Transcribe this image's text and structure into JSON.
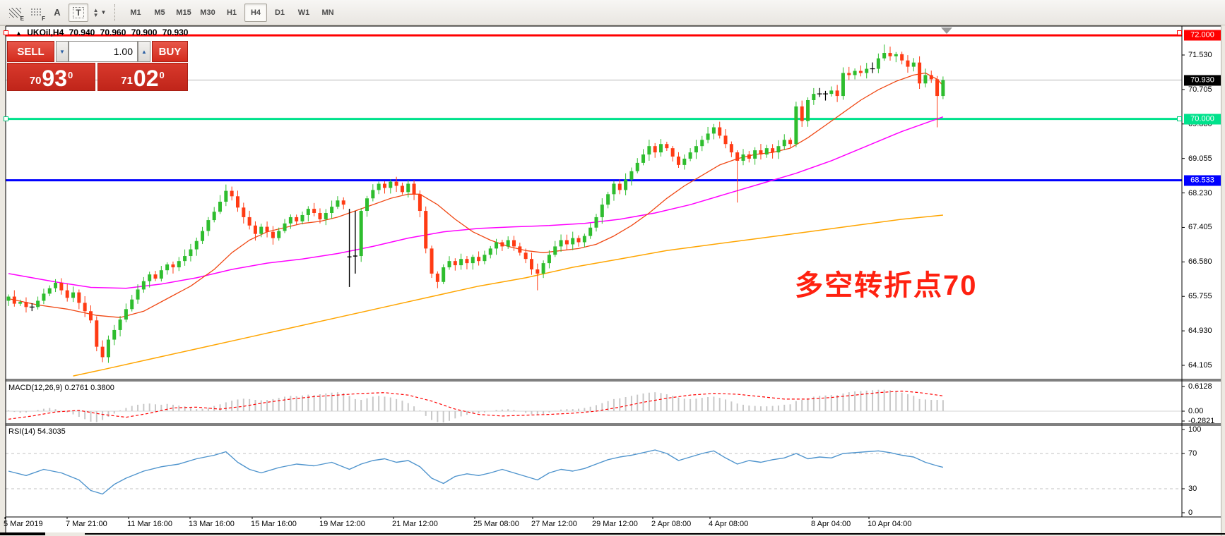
{
  "toolbar": {
    "icon_buttons": [
      {
        "name": "hatch-pattern-button",
        "sub": "E"
      },
      {
        "name": "grid-pattern-button",
        "sub": "F"
      },
      {
        "name": "font-button",
        "label": "A"
      },
      {
        "name": "text-box-button",
        "label": "T"
      },
      {
        "name": "arrange-symbols-button"
      }
    ],
    "timeframes": [
      {
        "label": "M1"
      },
      {
        "label": "M5"
      },
      {
        "label": "M15"
      },
      {
        "label": "M30"
      },
      {
        "label": "H1"
      },
      {
        "label": "H4"
      },
      {
        "label": "D1"
      },
      {
        "label": "W1"
      },
      {
        "label": "MN"
      }
    ],
    "active_timeframe": "H4"
  },
  "symbol_header": {
    "symbol": "UKOil,H4",
    "open": "70.940",
    "high": "70.960",
    "low": "70.900",
    "close": "70.930"
  },
  "trade_panel": {
    "sell_label": "SELL",
    "buy_label": "BUY",
    "volume": "1.00",
    "sell_price": {
      "prefix": "70",
      "big": "93",
      "sup": "0"
    },
    "buy_price": {
      "prefix": "71",
      "big": "02",
      "sup": "0"
    }
  },
  "annotation": {
    "text": "多空转折点70",
    "color": "#ff2110"
  },
  "indicator_labels": {
    "macd_name": "MACD(12,26,9)",
    "macd_values": "0.2761 0.3800",
    "rsi_name": "RSI(14)",
    "rsi_value": "54.3035"
  },
  "levels": [
    {
      "label": "72.000",
      "price": 72.0,
      "color": "#ff0000",
      "selected": true
    },
    {
      "label": "70.000",
      "price": 70.0,
      "color": "#00e28c",
      "selected": true
    },
    {
      "label": "68.533",
      "price": 68.533,
      "color": "#0000ff",
      "selected": false
    }
  ],
  "current_price": {
    "label": "70.930",
    "price": 70.93,
    "badge_color": "#000000"
  },
  "colors": {
    "bull": "#2ebd2e",
    "bear": "#ff3b14",
    "doji": "#000000",
    "ma_fast": "#f04814",
    "ma_mid": "#ff00ff",
    "ma_slow": "#ffa500",
    "macd_hist": "#c8c8c8",
    "macd_signal": "#ff0000",
    "rsi_line": "#4f94cd",
    "price_line": "#b4b4b4"
  },
  "chart_data": {
    "type": "candlestick",
    "symbol": "UKOil",
    "timeframe": "H4",
    "y_axis_ticks": [
      "71.530",
      "70.705",
      "69.880",
      "69.055",
      "68.230",
      "67.405",
      "66.580",
      "65.755",
      "64.930",
      "64.105"
    ],
    "x_axis_labels": [
      "5 Mar 2019",
      "7 Mar 21:00",
      "11 Mar 16:00",
      "13 Mar 16:00",
      "15 Mar 16:00",
      "19 Mar 12:00",
      "21 Mar 12:00",
      "25 Mar 08:00",
      "27 Mar 12:00",
      "29 Mar 12:00",
      "2 Apr 08:00",
      "4 Apr 08:00",
      "8 Apr 04:00",
      "10 Apr 04:00"
    ],
    "closes": [
      65.75,
      65.58,
      65.62,
      65.5,
      65.5,
      65.65,
      65.82,
      65.95,
      66.08,
      65.9,
      65.72,
      65.85,
      65.6,
      65.4,
      65.18,
      64.55,
      64.3,
      64.72,
      64.95,
      65.2,
      65.45,
      65.68,
      65.92,
      66.12,
      66.28,
      66.18,
      66.38,
      66.52,
      66.45,
      66.6,
      66.72,
      66.88,
      67.08,
      67.32,
      67.58,
      67.78,
      68.02,
      68.28,
      68.15,
      67.88,
      67.65,
      67.45,
      67.25,
      67.42,
      67.3,
      67.15,
      67.32,
      67.5,
      67.65,
      67.55,
      67.7,
      67.85,
      67.75,
      67.6,
      67.75,
      67.9,
      68.05,
      67.95,
      66.7,
      66.72,
      67.8,
      68.1,
      68.3,
      68.45,
      68.35,
      68.5,
      68.4,
      68.25,
      68.45,
      68.2,
      67.8,
      66.9,
      66.3,
      66.1,
      66.45,
      66.6,
      66.5,
      66.65,
      66.55,
      66.7,
      66.6,
      66.75,
      66.9,
      67.05,
      66.95,
      67.1,
      66.95,
      66.8,
      66.65,
      66.4,
      66.3,
      66.55,
      66.75,
      66.95,
      67.1,
      67.0,
      67.15,
      67.05,
      67.2,
      67.4,
      67.65,
      67.95,
      68.2,
      68.45,
      68.3,
      68.55,
      68.75,
      68.95,
      69.15,
      69.35,
      69.2,
      69.4,
      69.3,
      69.1,
      68.9,
      69.05,
      69.2,
      69.35,
      69.5,
      69.65,
      69.8,
      69.6,
      69.4,
      69.2,
      69.0,
      69.15,
      69.05,
      69.25,
      69.15,
      69.3,
      69.2,
      69.35,
      69.5,
      69.4,
      70.3,
      69.95,
      70.45,
      70.6,
      70.6,
      70.6,
      70.68,
      70.55,
      71.1,
      71.05,
      71.15,
      71.1,
      71.2,
      71.2,
      71.45,
      71.58,
      71.5,
      71.55,
      71.4,
      71.25,
      71.35,
      70.85,
      71.05,
      70.95,
      70.55,
      70.93
    ],
    "glitch_bars": [
      {
        "i": 58,
        "high": 67.85,
        "low": 65.98,
        "close": 66.7
      },
      {
        "i": 59,
        "high": 67.8,
        "low": 66.3,
        "close": 66.72
      }
    ],
    "wick_overrides": {
      "16": {
        "low": 64.18
      },
      "90": {
        "low": 65.9
      },
      "124": {
        "low": 68.0
      },
      "149": {
        "high": 71.78
      },
      "158": {
        "low": 69.8
      }
    },
    "ma_fast": [
      [
        0,
        65.7
      ],
      [
        5,
        65.55
      ],
      [
        10,
        65.45
      ],
      [
        15,
        65.3
      ],
      [
        19,
        65.25
      ],
      [
        23,
        65.4
      ],
      [
        27,
        65.7
      ],
      [
        31,
        66.0
      ],
      [
        35,
        66.4
      ],
      [
        38,
        66.8
      ],
      [
        41,
        67.1
      ],
      [
        44,
        67.3
      ],
      [
        47,
        67.4
      ],
      [
        50,
        67.5
      ],
      [
        53,
        67.55
      ],
      [
        56,
        67.65
      ],
      [
        59,
        67.8
      ],
      [
        62,
        67.95
      ],
      [
        65,
        68.1
      ],
      [
        68,
        68.2
      ],
      [
        70,
        68.2
      ],
      [
        73,
        67.95
      ],
      [
        76,
        67.6
      ],
      [
        79,
        67.3
      ],
      [
        82,
        67.1
      ],
      [
        85,
        66.95
      ],
      [
        88,
        66.85
      ],
      [
        91,
        66.8
      ],
      [
        94,
        66.85
      ],
      [
        97,
        66.9
      ],
      [
        100,
        67.0
      ],
      [
        103,
        67.2
      ],
      [
        106,
        67.45
      ],
      [
        109,
        67.75
      ],
      [
        112,
        68.1
      ],
      [
        115,
        68.4
      ],
      [
        118,
        68.65
      ],
      [
        121,
        68.9
      ],
      [
        124,
        69.05
      ],
      [
        127,
        69.15
      ],
      [
        130,
        69.2
      ],
      [
        133,
        69.3
      ],
      [
        136,
        69.55
      ],
      [
        139,
        69.85
      ],
      [
        142,
        70.15
      ],
      [
        145,
        70.45
      ],
      [
        148,
        70.7
      ],
      [
        151,
        70.9
      ],
      [
        154,
        71.05
      ],
      [
        156,
        71.1
      ],
      [
        158,
        70.95
      ],
      [
        159,
        70.8
      ]
    ],
    "ma_mid": [
      [
        0,
        66.3
      ],
      [
        8,
        66.1
      ],
      [
        14,
        65.97
      ],
      [
        20,
        65.95
      ],
      [
        26,
        66.05
      ],
      [
        32,
        66.2
      ],
      [
        38,
        66.4
      ],
      [
        44,
        66.55
      ],
      [
        50,
        66.65
      ],
      [
        56,
        66.78
      ],
      [
        62,
        66.95
      ],
      [
        68,
        67.15
      ],
      [
        74,
        67.3
      ],
      [
        80,
        67.38
      ],
      [
        86,
        67.42
      ],
      [
        92,
        67.45
      ],
      [
        98,
        67.5
      ],
      [
        104,
        67.6
      ],
      [
        110,
        67.75
      ],
      [
        116,
        67.95
      ],
      [
        122,
        68.2
      ],
      [
        128,
        68.45
      ],
      [
        134,
        68.7
      ],
      [
        140,
        69.0
      ],
      [
        146,
        69.35
      ],
      [
        152,
        69.7
      ],
      [
        156,
        69.9
      ],
      [
        159,
        70.05
      ]
    ],
    "ma_slow": [
      [
        11,
        63.85
      ],
      [
        16,
        64.0
      ],
      [
        24,
        64.25
      ],
      [
        32,
        64.5
      ],
      [
        40,
        64.75
      ],
      [
        48,
        65.0
      ],
      [
        56,
        65.25
      ],
      [
        64,
        65.5
      ],
      [
        72,
        65.75
      ],
      [
        80,
        66.0
      ],
      [
        88,
        66.2
      ],
      [
        96,
        66.45
      ],
      [
        104,
        66.65
      ],
      [
        112,
        66.85
      ],
      [
        120,
        67.0
      ],
      [
        128,
        67.15
      ],
      [
        136,
        67.3
      ],
      [
        144,
        67.45
      ],
      [
        152,
        67.6
      ],
      [
        159,
        67.7
      ]
    ],
    "macd": {
      "ticks": [
        "0.6128",
        "0.00",
        "-0.2821"
      ],
      "hist": [
        0.02,
        -0.02,
        -0.04,
        -0.03,
        0.0,
        0.03,
        0.06,
        0.08,
        0.05,
        0.01,
        -0.03,
        -0.08,
        -0.14,
        -0.2,
        -0.26,
        -0.27,
        -0.22,
        -0.14,
        -0.06,
        0.02,
        0.08,
        0.13,
        0.16,
        0.18,
        0.19,
        0.17,
        0.16,
        0.18,
        0.16,
        0.14,
        0.12,
        0.08,
        0.05,
        0.06,
        0.09,
        0.13,
        0.17,
        0.22,
        0.26,
        0.29,
        0.31,
        0.3,
        0.28,
        0.27,
        0.28,
        0.3,
        0.33,
        0.36,
        0.38,
        0.37,
        0.39,
        0.41,
        0.4,
        0.42,
        0.44,
        0.46,
        0.47,
        0.45,
        0.38,
        0.3,
        0.28,
        0.32,
        0.36,
        0.38,
        0.36,
        0.34,
        0.3,
        0.26,
        0.2,
        0.12,
        0.02,
        -0.12,
        -0.22,
        -0.27,
        -0.28,
        -0.24,
        -0.18,
        -0.13,
        -0.09,
        -0.06,
        -0.05,
        -0.03,
        0.0,
        0.03,
        0.04,
        0.05,
        0.03,
        0.0,
        -0.04,
        -0.08,
        -0.1,
        -0.07,
        -0.03,
        0.01,
        0.04,
        0.05,
        0.05,
        0.06,
        0.08,
        0.11,
        0.15,
        0.2,
        0.25,
        0.3,
        0.32,
        0.35,
        0.38,
        0.41,
        0.44,
        0.46,
        0.47,
        0.45,
        0.42,
        0.38,
        0.34,
        0.31,
        0.3,
        0.31,
        0.33,
        0.35,
        0.36,
        0.33,
        0.29,
        0.24,
        0.19,
        0.16,
        0.14,
        0.13,
        0.12,
        0.12,
        0.13,
        0.14,
        0.16,
        0.17,
        0.25,
        0.28,
        0.32,
        0.36,
        0.38,
        0.39,
        0.4,
        0.4,
        0.44,
        0.47,
        0.49,
        0.5,
        0.51,
        0.52,
        0.53,
        0.53,
        0.52,
        0.5,
        0.46,
        0.42,
        0.38,
        0.3,
        0.29,
        0.28,
        0.28,
        0.2761
      ],
      "signal": [
        [
          0,
          -0.2
        ],
        [
          4,
          -0.12
        ],
        [
          8,
          -0.02
        ],
        [
          12,
          0.02
        ],
        [
          16,
          -0.08
        ],
        [
          20,
          -0.15
        ],
        [
          24,
          -0.05
        ],
        [
          28,
          0.08
        ],
        [
          32,
          0.1
        ],
        [
          36,
          0.05
        ],
        [
          40,
          0.12
        ],
        [
          44,
          0.22
        ],
        [
          48,
          0.3
        ],
        [
          52,
          0.36
        ],
        [
          56,
          0.4
        ],
        [
          60,
          0.44
        ],
        [
          64,
          0.46
        ],
        [
          68,
          0.4
        ],
        [
          72,
          0.25
        ],
        [
          76,
          0.05
        ],
        [
          80,
          -0.08
        ],
        [
          84,
          -0.12
        ],
        [
          88,
          -0.1
        ],
        [
          92,
          -0.08
        ],
        [
          96,
          -0.05
        ],
        [
          100,
          0.0
        ],
        [
          104,
          0.1
        ],
        [
          108,
          0.22
        ],
        [
          112,
          0.32
        ],
        [
          116,
          0.4
        ],
        [
          120,
          0.44
        ],
        [
          124,
          0.42
        ],
        [
          128,
          0.36
        ],
        [
          132,
          0.3
        ],
        [
          136,
          0.3
        ],
        [
          140,
          0.34
        ],
        [
          144,
          0.4
        ],
        [
          148,
          0.46
        ],
        [
          152,
          0.5
        ],
        [
          155,
          0.46
        ],
        [
          157,
          0.42
        ],
        [
          159,
          0.38
        ]
      ]
    },
    "rsi": {
      "ticks": [
        "100",
        "70",
        "30",
        "0"
      ],
      "levels": [
        70,
        30
      ],
      "last": 54.3035,
      "points": [
        [
          0,
          50
        ],
        [
          3,
          45
        ],
        [
          6,
          52
        ],
        [
          9,
          48
        ],
        [
          12,
          40
        ],
        [
          14,
          28
        ],
        [
          16,
          24
        ],
        [
          18,
          35
        ],
        [
          20,
          42
        ],
        [
          23,
          50
        ],
        [
          26,
          55
        ],
        [
          29,
          58
        ],
        [
          32,
          64
        ],
        [
          35,
          68
        ],
        [
          37,
          72
        ],
        [
          39,
          60
        ],
        [
          41,
          52
        ],
        [
          43,
          48
        ],
        [
          46,
          54
        ],
        [
          49,
          58
        ],
        [
          52,
          56
        ],
        [
          55,
          60
        ],
        [
          58,
          52
        ],
        [
          60,
          58
        ],
        [
          62,
          62
        ],
        [
          64,
          64
        ],
        [
          66,
          60
        ],
        [
          68,
          62
        ],
        [
          70,
          55
        ],
        [
          72,
          42
        ],
        [
          74,
          36
        ],
        [
          76,
          44
        ],
        [
          78,
          47
        ],
        [
          80,
          45
        ],
        [
          82,
          48
        ],
        [
          84,
          52
        ],
        [
          86,
          48
        ],
        [
          88,
          44
        ],
        [
          90,
          40
        ],
        [
          92,
          48
        ],
        [
          94,
          52
        ],
        [
          96,
          50
        ],
        [
          98,
          53
        ],
        [
          100,
          58
        ],
        [
          102,
          63
        ],
        [
          104,
          66
        ],
        [
          106,
          68
        ],
        [
          108,
          71
        ],
        [
          110,
          74
        ],
        [
          112,
          70
        ],
        [
          114,
          62
        ],
        [
          116,
          66
        ],
        [
          118,
          70
        ],
        [
          120,
          73
        ],
        [
          122,
          65
        ],
        [
          124,
          58
        ],
        [
          126,
          62
        ],
        [
          128,
          60
        ],
        [
          130,
          63
        ],
        [
          132,
          65
        ],
        [
          134,
          70
        ],
        [
          136,
          64
        ],
        [
          138,
          66
        ],
        [
          140,
          65
        ],
        [
          142,
          70
        ],
        [
          144,
          71
        ],
        [
          146,
          72
        ],
        [
          148,
          73
        ],
        [
          150,
          71
        ],
        [
          152,
          68
        ],
        [
          154,
          66
        ],
        [
          156,
          60
        ],
        [
          158,
          56
        ],
        [
          159,
          54.3
        ]
      ]
    }
  }
}
